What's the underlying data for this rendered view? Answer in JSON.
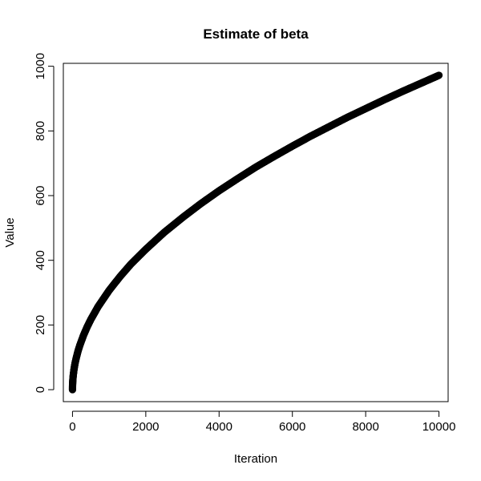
{
  "chart_data": {
    "type": "scatter",
    "title": "Estimate of beta",
    "xlabel": "Iteration",
    "ylabel": "Value",
    "xlim": [
      -250,
      10250
    ],
    "ylim": [
      -37,
      1009
    ],
    "xticks": [
      0,
      2000,
      4000,
      6000,
      8000,
      10000
    ],
    "xtick_labels": [
      "0",
      "2000",
      "4000",
      "6000",
      "8000",
      "10000"
    ],
    "yticks": [
      0,
      200,
      400,
      600,
      800,
      1000
    ],
    "ytick_labels": [
      "0",
      "200",
      "400",
      "600",
      "800",
      "1000"
    ],
    "grid": false,
    "legend": "none",
    "marker": "open-circle",
    "point_color": "#000000",
    "series": [
      {
        "x": [
          0,
          1,
          2,
          5,
          10,
          20,
          40,
          70,
          100,
          150,
          200,
          300,
          400,
          500,
          700,
          1000,
          1300,
          1600,
          2000,
          2500,
          3000,
          3500,
          4000,
          4500,
          5000,
          5500,
          6000,
          6500,
          7000,
          7500,
          8000,
          8500,
          9000,
          9500,
          10000
        ],
        "y": [
          0,
          10,
          14,
          22,
          31,
          44,
          62,
          82,
          97,
          119,
          137,
          168,
          194,
          217,
          257,
          307,
          350,
          389,
          434,
          486,
          532,
          575,
          615,
          652,
          688,
          721,
          753,
          784,
          813,
          842,
          869,
          896,
          922,
          947,
          972
        ]
      }
    ]
  }
}
